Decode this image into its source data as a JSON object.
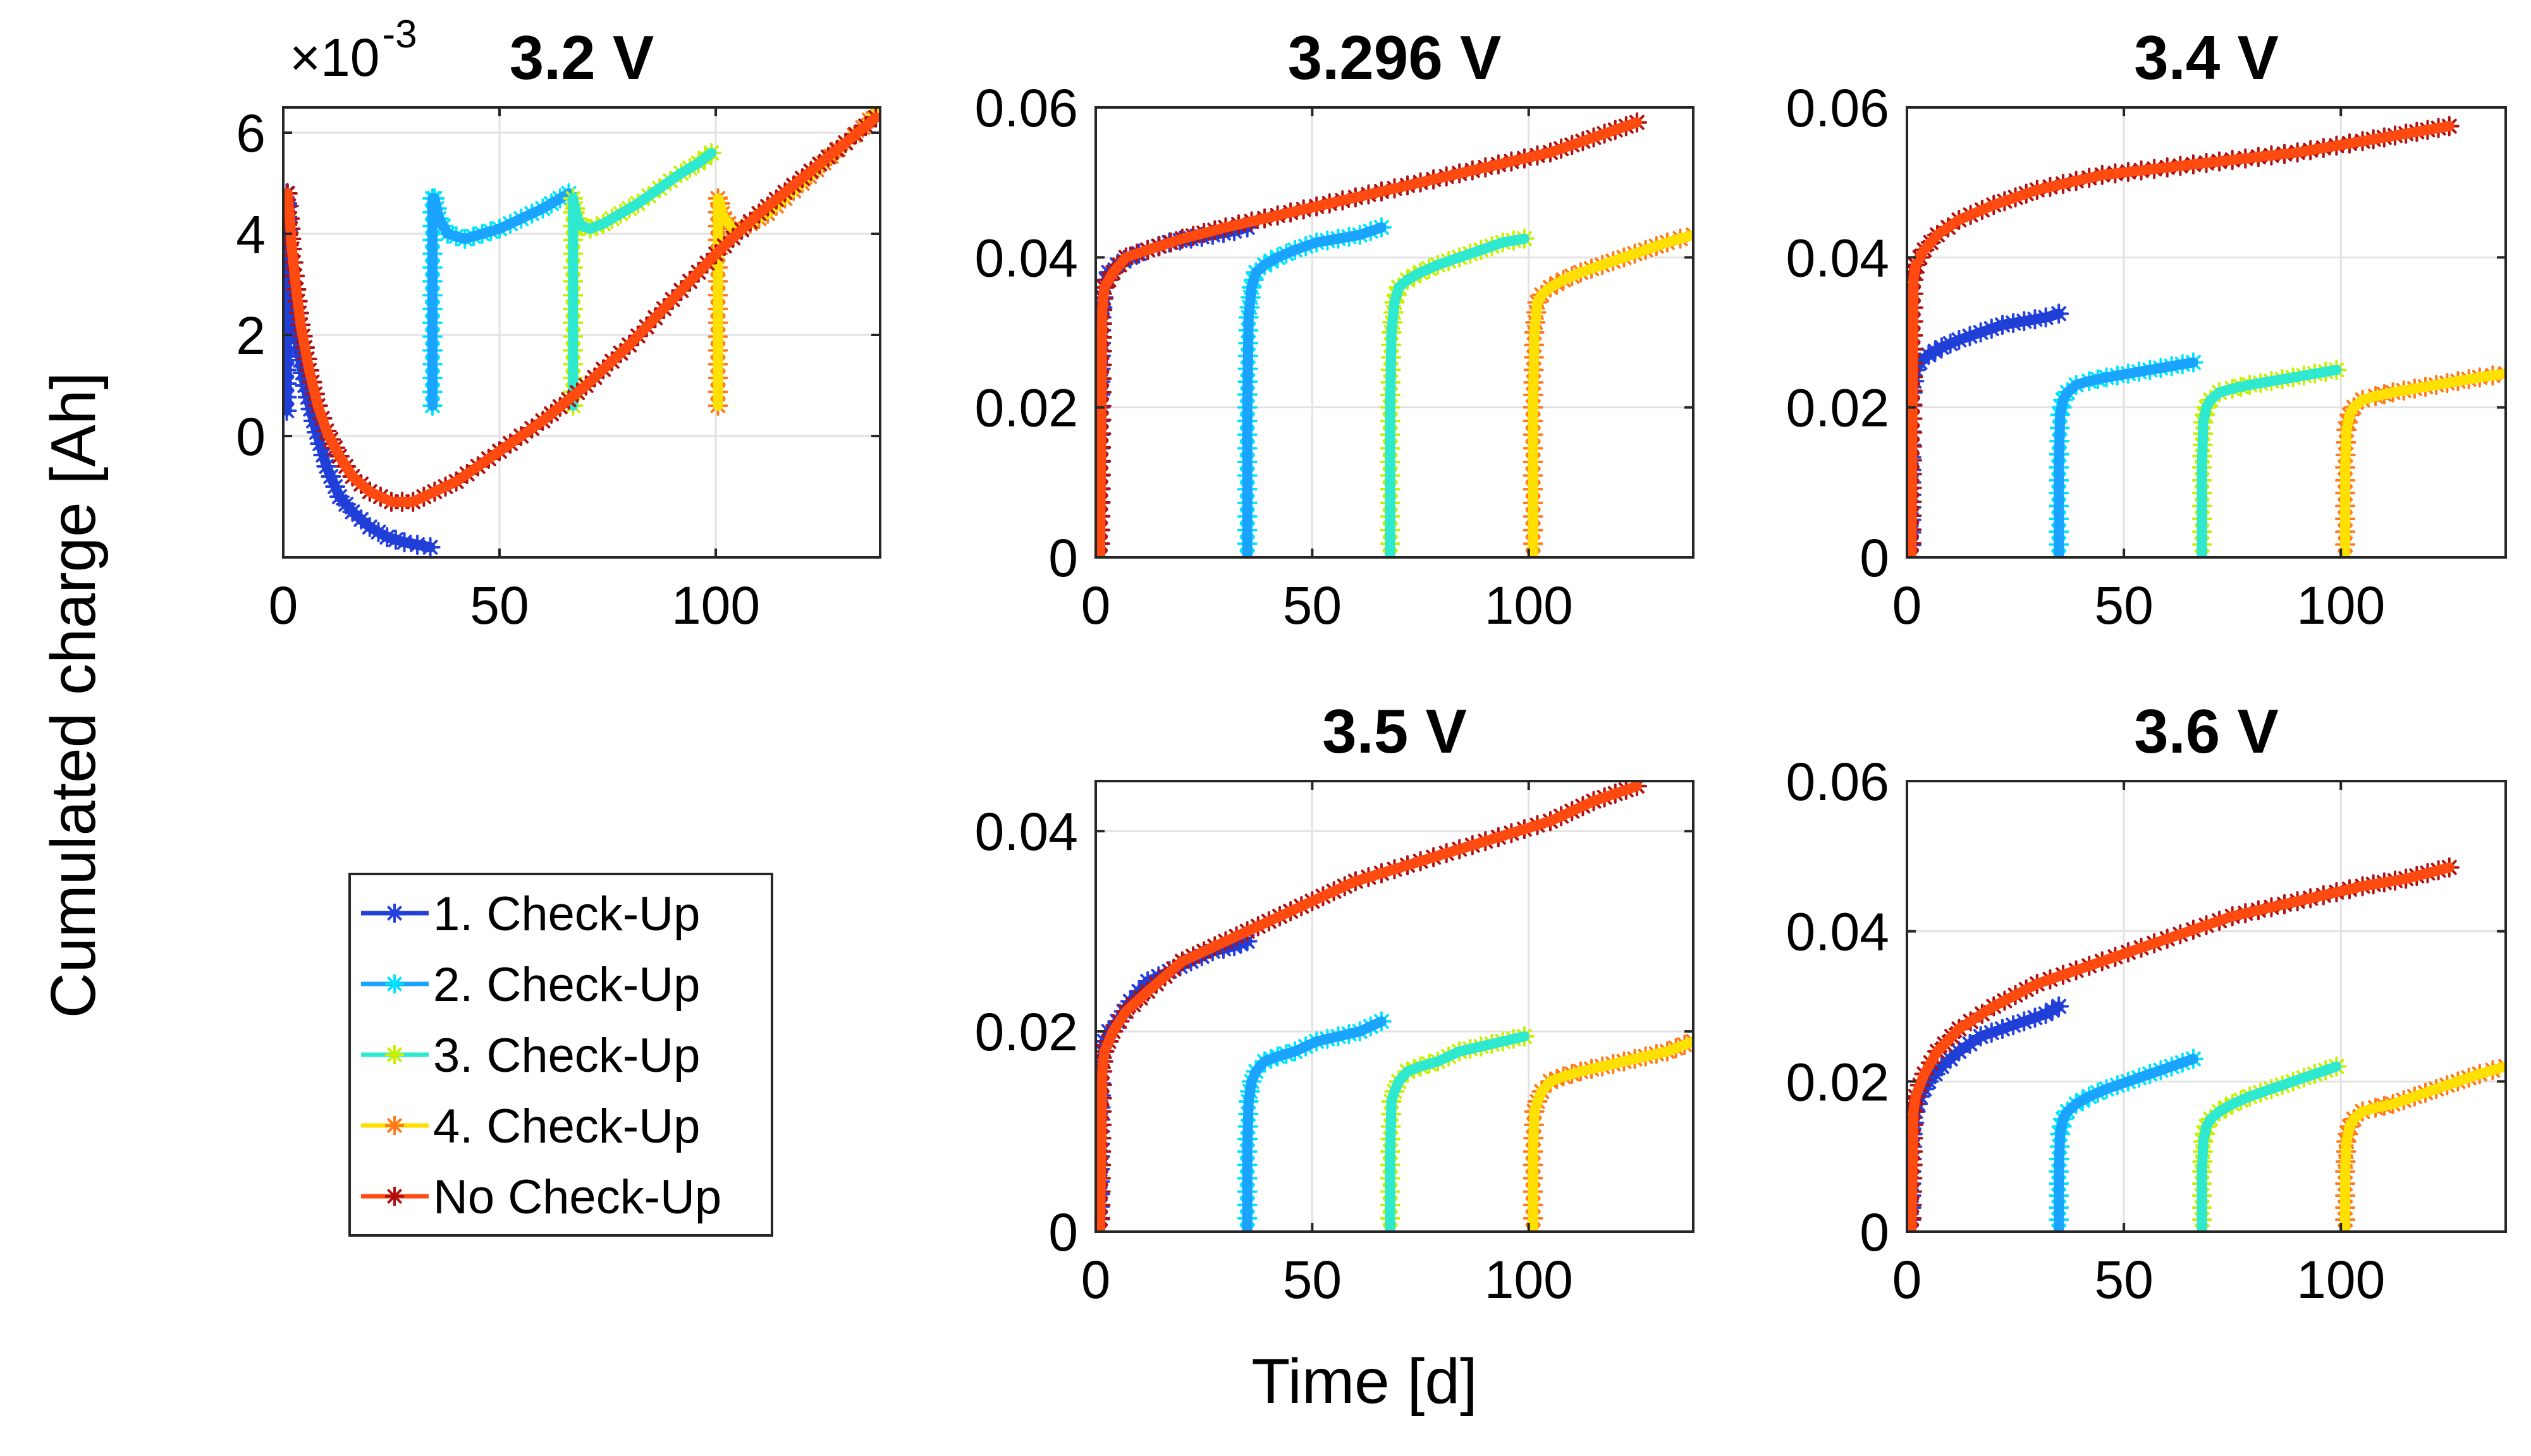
{
  "figure": {
    "ylabel": "Cumulated charge [Ah]",
    "xlabel": "Time [d]"
  },
  "legend": {
    "entries": [
      {
        "label": "1. Check-Up",
        "color": "#1f3fd6",
        "marker_color": "#2540e0"
      },
      {
        "label": "2. Check-Up",
        "color": "#1aa3ff",
        "marker_color": "#00e5ff"
      },
      {
        "label": "3. Check-Up",
        "color": "#2ee8d0",
        "marker_color": "#c8f000"
      },
      {
        "label": "4. Check-Up",
        "color": "#ffe000",
        "marker_color": "#ff7a1a"
      },
      {
        "label": "No Check-Up",
        "color": "#ff4a10",
        "marker_color": "#b01010"
      }
    ]
  },
  "chart_data": [
    {
      "type": "line",
      "title": "3.2 V",
      "exponent_label": "×10",
      "exponent_power": "-3",
      "xlim": [
        0,
        138
      ],
      "ylim": [
        -2.4,
        6.5
      ],
      "xticks": [
        0,
        50,
        100
      ],
      "xtick_labels": [
        "0",
        "50",
        "100"
      ],
      "yticks": [
        0,
        2,
        4,
        6
      ],
      "ytick_labels": [
        "0",
        "2",
        "4",
        "6"
      ],
      "series": [
        {
          "name": "1. Check-Up",
          "x": [
            0.8,
            0.8,
            0.9,
            1,
            2,
            3,
            5,
            7,
            10,
            13,
            16,
            20,
            24,
            28,
            31,
            34
          ],
          "y": [
            0.5,
            4.8,
            4.6,
            3.8,
            2.8,
            2.0,
            1.0,
            0.3,
            -0.6,
            -1.2,
            -1.5,
            -1.8,
            -2.0,
            -2.1,
            -2.15,
            -2.2
          ]
        },
        {
          "name": "2. Check-Up",
          "x": [
            34.5,
            34.5,
            35,
            36,
            38,
            42,
            46,
            50,
            55,
            60,
            64,
            66
          ],
          "y": [
            0.6,
            4.7,
            4.7,
            4.3,
            4.0,
            3.9,
            4.0,
            4.1,
            4.3,
            4.5,
            4.7,
            4.8
          ]
        },
        {
          "name": "3. Check-Up",
          "x": [
            67,
            67,
            67.5,
            68,
            69,
            71,
            74,
            78,
            82,
            87,
            92,
            96,
            99
          ],
          "y": [
            0.6,
            4.7,
            4.5,
            4.3,
            4.15,
            4.1,
            4.2,
            4.4,
            4.6,
            4.9,
            5.2,
            5.4,
            5.6
          ]
        },
        {
          "name": "4. Check-Up",
          "x": [
            100.5,
            100.5,
            101,
            101.5,
            102,
            103,
            104,
            106,
            108,
            112,
            116,
            120,
            125,
            130,
            134,
            137
          ],
          "y": [
            0.6,
            4.7,
            4.6,
            4.4,
            4.3,
            4.2,
            4.1,
            4.1,
            4.2,
            4.4,
            4.7,
            5.0,
            5.4,
            5.8,
            6.1,
            6.4
          ]
        },
        {
          "name": "No Check-Up",
          "x": [
            1,
            1.5,
            2,
            3,
            4,
            6,
            8,
            10,
            13,
            16,
            20,
            25,
            30,
            35,
            40,
            50,
            60,
            70,
            80,
            90,
            100,
            110,
            120,
            130,
            137
          ],
          "y": [
            4.8,
            4.3,
            3.7,
            2.9,
            2.2,
            1.3,
            0.6,
            0.1,
            -0.4,
            -0.8,
            -1.1,
            -1.3,
            -1.3,
            -1.1,
            -0.9,
            -0.3,
            0.3,
            1.0,
            1.8,
            2.7,
            3.6,
            4.4,
            5.1,
            5.8,
            6.3
          ]
        }
      ]
    },
    {
      "type": "line",
      "title": "3.296 V",
      "xlim": [
        0,
        138
      ],
      "ylim": [
        0,
        0.06
      ],
      "xticks": [
        0,
        50,
        100
      ],
      "xtick_labels": [
        "0",
        "50",
        "100"
      ],
      "yticks": [
        0,
        0.02,
        0.04,
        0.06
      ],
      "ytick_labels": [
        "0",
        "0.02",
        "0.04",
        "0.06"
      ],
      "series": [
        {
          "name": "1. Check-Up",
          "x": [
            1,
            1,
            1.3,
            2,
            3,
            5,
            8,
            12,
            17,
            22,
            27,
            32,
            35
          ],
          "y": [
            0,
            0.02,
            0.032,
            0.036,
            0.038,
            0.039,
            0.04,
            0.041,
            0.042,
            0.0425,
            0.043,
            0.0435,
            0.044
          ]
        },
        {
          "name": "2. Check-Up",
          "x": [
            35,
            35,
            35.3,
            36,
            37,
            39,
            42,
            46,
            51,
            56,
            61,
            66
          ],
          "y": [
            0,
            0.02,
            0.032,
            0.036,
            0.038,
            0.039,
            0.04,
            0.041,
            0.042,
            0.0425,
            0.043,
            0.044
          ]
        },
        {
          "name": "3. Check-Up",
          "x": [
            68,
            68,
            68.3,
            69,
            70,
            72,
            75,
            79,
            84,
            89,
            94,
            99
          ],
          "y": [
            0,
            0.02,
            0.03,
            0.034,
            0.036,
            0.037,
            0.038,
            0.039,
            0.04,
            0.041,
            0.042,
            0.0425
          ]
        },
        {
          "name": "4. Check-Up",
          "x": [
            101,
            101,
            101.3,
            102,
            103,
            105,
            108,
            112,
            117,
            122,
            127,
            132,
            138
          ],
          "y": [
            0,
            0.02,
            0.03,
            0.034,
            0.035,
            0.036,
            0.037,
            0.038,
            0.039,
            0.04,
            0.041,
            0.042,
            0.043
          ]
        },
        {
          "name": "No Check-Up",
          "x": [
            1,
            1.5,
            2,
            4,
            7,
            12,
            20,
            30,
            45,
            60,
            75,
            90,
            105,
            115,
            125
          ],
          "y": [
            0,
            0.033,
            0.036,
            0.038,
            0.04,
            0.041,
            0.0425,
            0.044,
            0.046,
            0.048,
            0.05,
            0.052,
            0.054,
            0.056,
            0.058
          ]
        }
      ]
    },
    {
      "type": "line",
      "title": "3.4 V",
      "xlim": [
        0,
        138
      ],
      "ylim": [
        0,
        0.06
      ],
      "xticks": [
        0,
        50,
        100
      ],
      "xtick_labels": [
        "0",
        "50",
        "100"
      ],
      "yticks": [
        0,
        0.02,
        0.04,
        0.06
      ],
      "ytick_labels": [
        "0",
        "0.02",
        "0.04",
        "0.06"
      ],
      "series": [
        {
          "name": "1. Check-Up",
          "x": [
            1,
            1,
            1.3,
            2,
            3,
            5,
            8,
            12,
            17,
            22,
            27,
            32,
            35
          ],
          "y": [
            0,
            0.015,
            0.022,
            0.025,
            0.026,
            0.027,
            0.028,
            0.029,
            0.03,
            0.031,
            0.0315,
            0.032,
            0.0325
          ]
        },
        {
          "name": "2. Check-Up",
          "x": [
            35,
            35,
            35.3,
            36,
            37,
            39,
            42,
            46,
            51,
            56,
            61,
            66
          ],
          "y": [
            0,
            0.012,
            0.019,
            0.021,
            0.022,
            0.023,
            0.0235,
            0.024,
            0.0245,
            0.025,
            0.0255,
            0.026
          ]
        },
        {
          "name": "3. Check-Up",
          "x": [
            68,
            68,
            68.3,
            69,
            70,
            72,
            75,
            79,
            84,
            89,
            94,
            99
          ],
          "y": [
            0,
            0.012,
            0.018,
            0.02,
            0.021,
            0.022,
            0.0225,
            0.023,
            0.0235,
            0.024,
            0.0245,
            0.025
          ]
        },
        {
          "name": "4. Check-Up",
          "x": [
            101,
            101,
            101.3,
            102,
            103,
            105,
            108,
            112,
            117,
            122,
            127,
            132,
            138
          ],
          "y": [
            0,
            0.012,
            0.017,
            0.019,
            0.02,
            0.021,
            0.0215,
            0.022,
            0.0225,
            0.023,
            0.0235,
            0.024,
            0.0245
          ]
        },
        {
          "name": "No Check-Up",
          "x": [
            1,
            1.5,
            2,
            4,
            7,
            12,
            20,
            30,
            45,
            60,
            75,
            90,
            105,
            115,
            125
          ],
          "y": [
            0,
            0.037,
            0.039,
            0.041,
            0.043,
            0.045,
            0.047,
            0.049,
            0.051,
            0.052,
            0.053,
            0.054,
            0.0555,
            0.0565,
            0.0575
          ]
        }
      ]
    },
    {
      "type": "line",
      "title": "3.5 V",
      "xlim": [
        0,
        138
      ],
      "ylim": [
        0,
        0.045
      ],
      "xticks": [
        0,
        50,
        100
      ],
      "xtick_labels": [
        "0",
        "50",
        "100"
      ],
      "yticks": [
        0,
        0.02,
        0.04
      ],
      "ytick_labels": [
        "0",
        "0.02",
        "0.04"
      ],
      "series": [
        {
          "name": "1. Check-Up",
          "x": [
            1,
            1,
            1.3,
            2,
            3,
            5,
            8,
            12,
            17,
            22,
            27,
            32,
            35
          ],
          "y": [
            0,
            0.01,
            0.016,
            0.019,
            0.02,
            0.021,
            0.023,
            0.025,
            0.026,
            0.027,
            0.028,
            0.0285,
            0.029
          ]
        },
        {
          "name": "2. Check-Up",
          "x": [
            35,
            35,
            35.3,
            36,
            37,
            39,
            42,
            46,
            51,
            56,
            61,
            66
          ],
          "y": [
            0,
            0.008,
            0.013,
            0.015,
            0.016,
            0.017,
            0.0175,
            0.018,
            0.019,
            0.0195,
            0.02,
            0.021
          ]
        },
        {
          "name": "3. Check-Up",
          "x": [
            68,
            68,
            68.3,
            69,
            70,
            72,
            75,
            79,
            84,
            89,
            94,
            99
          ],
          "y": [
            0,
            0.008,
            0.013,
            0.014,
            0.015,
            0.016,
            0.0165,
            0.017,
            0.018,
            0.0185,
            0.019,
            0.0195
          ]
        },
        {
          "name": "4. Check-Up",
          "x": [
            101,
            101,
            101.3,
            102,
            103,
            105,
            108,
            112,
            117,
            122,
            127,
            132,
            138
          ],
          "y": [
            0,
            0.008,
            0.012,
            0.013,
            0.014,
            0.015,
            0.0155,
            0.016,
            0.0165,
            0.017,
            0.0175,
            0.018,
            0.019
          ]
        },
        {
          "name": "No Check-Up",
          "x": [
            1,
            1.5,
            2,
            4,
            7,
            12,
            20,
            30,
            45,
            60,
            75,
            90,
            105,
            115,
            125
          ],
          "y": [
            0,
            0.016,
            0.018,
            0.02,
            0.022,
            0.024,
            0.027,
            0.029,
            0.032,
            0.035,
            0.037,
            0.039,
            0.041,
            0.043,
            0.0445
          ]
        }
      ]
    },
    {
      "type": "line",
      "title": "3.6 V",
      "xlim": [
        0,
        138
      ],
      "ylim": [
        0,
        0.06
      ],
      "xticks": [
        0,
        50,
        100
      ],
      "xtick_labels": [
        "0",
        "50",
        "100"
      ],
      "yticks": [
        0,
        0.02,
        0.04,
        0.06
      ],
      "ytick_labels": [
        "0",
        "0.02",
        "0.04",
        "0.06"
      ],
      "series": [
        {
          "name": "1. Check-Up",
          "x": [
            1,
            1,
            1.3,
            2,
            3,
            5,
            8,
            12,
            17,
            22,
            27,
            32,
            35
          ],
          "y": [
            0,
            0.008,
            0.013,
            0.016,
            0.018,
            0.02,
            0.022,
            0.024,
            0.026,
            0.027,
            0.028,
            0.029,
            0.03
          ]
        },
        {
          "name": "2. Check-Up",
          "x": [
            35,
            35,
            35.3,
            36,
            37,
            39,
            42,
            46,
            51,
            56,
            61,
            66
          ],
          "y": [
            0,
            0.008,
            0.013,
            0.015,
            0.016,
            0.017,
            0.018,
            0.019,
            0.02,
            0.021,
            0.022,
            0.023
          ]
        },
        {
          "name": "3. Check-Up",
          "x": [
            68,
            68,
            68.3,
            69,
            70,
            72,
            75,
            79,
            84,
            89,
            94,
            99
          ],
          "y": [
            0,
            0.008,
            0.012,
            0.014,
            0.015,
            0.016,
            0.017,
            0.018,
            0.019,
            0.02,
            0.021,
            0.022
          ]
        },
        {
          "name": "4. Check-Up",
          "x": [
            101,
            101,
            101.3,
            102,
            103,
            105,
            108,
            112,
            117,
            122,
            127,
            132,
            138
          ],
          "y": [
            0,
            0.008,
            0.012,
            0.014,
            0.015,
            0.016,
            0.0165,
            0.017,
            0.018,
            0.019,
            0.02,
            0.021,
            0.022
          ]
        },
        {
          "name": "No Check-Up",
          "x": [
            1,
            1.5,
            2,
            4,
            7,
            12,
            20,
            30,
            45,
            60,
            75,
            90,
            105,
            115,
            125
          ],
          "y": [
            0,
            0.016,
            0.018,
            0.021,
            0.024,
            0.027,
            0.03,
            0.033,
            0.036,
            0.039,
            0.042,
            0.044,
            0.046,
            0.047,
            0.0485
          ]
        }
      ]
    }
  ]
}
